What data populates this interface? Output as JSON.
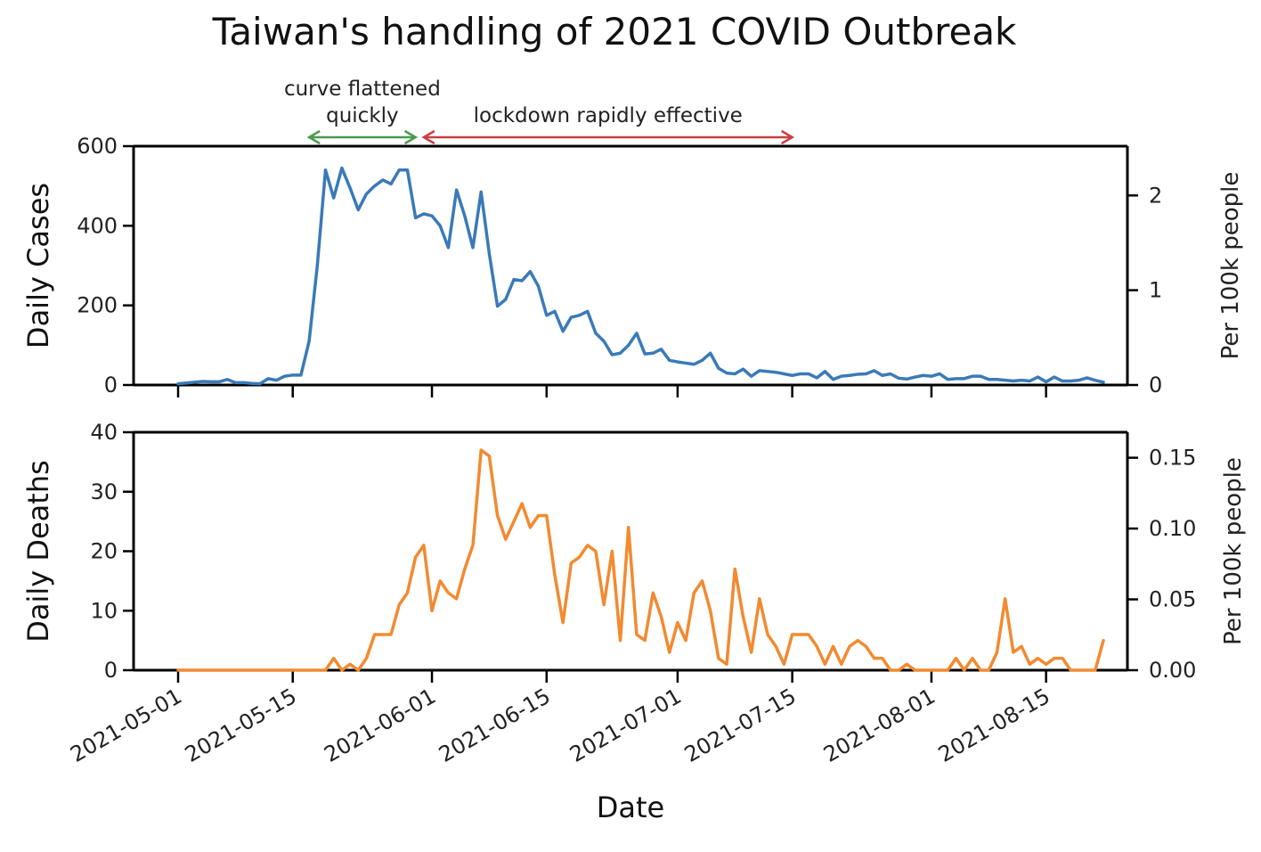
{
  "title": "Taiwan's handling of 2021 COVID Outbreak",
  "colors": {
    "cases": "#3a7ab8",
    "deaths": "#f28a30",
    "annot_green": "#4a9a4a",
    "annot_red": "#c84040"
  },
  "annotations": [
    {
      "label_lines": [
        "curve flattened",
        "quickly"
      ],
      "start": "2021-05-17",
      "end": "2021-05-30",
      "color": "annot_green"
    },
    {
      "label_lines": [
        "lockdown rapidly effective"
      ],
      "start": "2021-05-31",
      "end": "2021-07-15",
      "color": "annot_red"
    }
  ],
  "chart_data": [
    {
      "type": "line",
      "name": "cases-panel",
      "ylabel": "Daily Cases",
      "ylabel_right": "Per 100k people",
      "ylim": [
        0,
        600
      ],
      "yticks": [
        0,
        200,
        400,
        600
      ],
      "ylim_right": [
        0,
        2.52
      ],
      "yticks_right": [
        0,
        1,
        2
      ],
      "start_date": "2021-05-01",
      "end_date": "2021-08-22",
      "series": [
        {
          "color": "cases",
          "values": [
            3,
            5,
            7,
            9,
            8,
            8,
            14,
            6,
            6,
            4,
            3,
            16,
            12,
            22,
            25,
            25,
            110,
            300,
            540,
            470,
            545,
            495,
            440,
            480,
            500,
            515,
            505,
            540,
            540,
            420,
            430,
            425,
            400,
            345,
            490,
            425,
            345,
            485,
            330,
            198,
            215,
            265,
            262,
            285,
            248,
            175,
            185,
            135,
            170,
            175,
            185,
            130,
            110,
            76,
            80,
            100,
            130,
            78,
            80,
            90,
            62,
            58,
            55,
            52,
            62,
            80,
            42,
            30,
            28,
            40,
            22,
            36,
            34,
            32,
            28,
            24,
            28,
            28,
            18,
            34,
            14,
            22,
            24,
            27,
            28,
            36,
            24,
            28,
            17,
            15,
            20,
            24,
            22,
            28,
            14,
            16,
            16,
            22,
            22,
            14,
            14,
            12,
            10,
            12,
            10,
            20,
            8,
            20,
            10,
            10,
            12,
            18,
            12,
            7
          ]
        }
      ],
      "xticks": [
        "2021-05-01",
        "2021-05-15",
        "2021-06-01",
        "2021-06-15",
        "2021-07-01",
        "2021-07-15",
        "2021-08-01",
        "2021-08-15"
      ]
    },
    {
      "type": "line",
      "name": "deaths-panel",
      "ylabel": "Daily Deaths",
      "ylabel_right": "Per 100k people",
      "xlabel": "Date",
      "ylim": [
        0,
        40
      ],
      "yticks": [
        0,
        10,
        20,
        30,
        40
      ],
      "ylim_right": [
        0,
        0.168
      ],
      "yticks_right": [
        "0.00",
        "0.05",
        "0.10",
        "0.15"
      ],
      "start_date": "2021-05-01",
      "end_date": "2021-08-22",
      "series": [
        {
          "color": "deaths",
          "values": [
            0,
            0,
            0,
            0,
            0,
            0,
            0,
            0,
            0,
            0,
            0,
            0,
            0,
            0,
            0,
            0,
            0,
            0,
            0,
            2,
            0,
            1,
            0,
            2,
            6,
            6,
            6,
            11,
            13,
            19,
            21,
            10,
            15,
            13,
            12,
            17,
            21,
            37,
            36,
            26,
            22,
            25,
            28,
            24,
            26,
            26,
            16,
            8,
            18,
            19,
            21,
            20,
            11,
            20,
            5,
            24,
            6,
            5,
            13,
            9,
            3,
            8,
            5,
            13,
            15,
            10,
            2,
            1,
            17,
            9,
            3,
            12,
            6,
            4,
            1,
            6,
            6,
            6,
            4,
            1,
            4,
            1,
            4,
            5,
            4,
            2,
            2,
            0,
            0,
            1,
            0,
            0,
            0,
            0,
            0,
            2,
            0,
            2,
            0,
            0,
            3,
            12,
            3,
            4,
            1,
            2,
            1,
            2,
            2,
            0,
            0,
            0,
            0,
            5
          ]
        }
      ],
      "xticks": [
        "2021-05-01",
        "2021-05-15",
        "2021-06-01",
        "2021-06-15",
        "2021-07-01",
        "2021-07-15",
        "2021-08-01",
        "2021-08-15"
      ]
    }
  ]
}
